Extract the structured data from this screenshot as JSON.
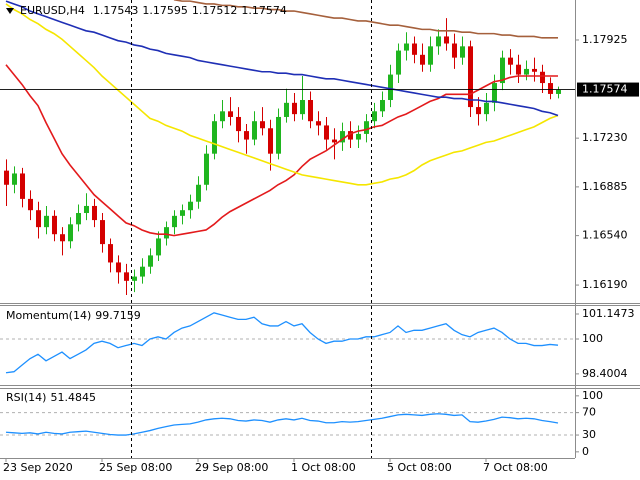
{
  "chart_data": [
    {
      "type": "candlestick",
      "title": "EURUSD,H4",
      "categories": [
        "23 Sep 2020",
        null,
        null,
        null,
        null,
        null,
        null,
        null,
        null,
        null,
        null,
        null,
        "25 Sep 08:00",
        null,
        null,
        null,
        null,
        null,
        null,
        null,
        null,
        null,
        null,
        null,
        "29 Sep 08:00",
        null,
        null,
        null,
        null,
        null,
        null,
        null,
        null,
        null,
        null,
        null,
        "1 Oct 08:00",
        null,
        null,
        null,
        null,
        null,
        null,
        null,
        null,
        null,
        null,
        null,
        "5 Oct 08:00",
        null,
        null,
        null,
        null,
        null,
        null,
        null,
        null,
        null,
        null,
        null,
        "7 Oct 08:00",
        null,
        null,
        null,
        null,
        null,
        null,
        null,
        null,
        null
      ],
      "candles": [
        [
          1.17,
          1.1708,
          1.1675,
          1.169
        ],
        [
          1.169,
          1.1703,
          1.1684,
          1.1698
        ],
        [
          1.1698,
          1.1702,
          1.1674,
          1.168
        ],
        [
          1.168,
          1.1686,
          1.1665,
          1.1672
        ],
        [
          1.1672,
          1.1678,
          1.1652,
          1.166
        ],
        [
          1.166,
          1.1675,
          1.1655,
          1.1668
        ],
        [
          1.1668,
          1.1672,
          1.165,
          1.1655
        ],
        [
          1.1655,
          1.166,
          1.164,
          1.165
        ],
        [
          1.165,
          1.1667,
          1.1645,
          1.1662
        ],
        [
          1.1662,
          1.1676,
          1.1657,
          1.167
        ],
        [
          1.167,
          1.1684,
          1.1665,
          1.1675
        ],
        [
          1.1675,
          1.168,
          1.166,
          1.1665
        ],
        [
          1.1665,
          1.167,
          1.1642,
          1.1648
        ],
        [
          1.1648,
          1.1652,
          1.1628,
          1.1635
        ],
        [
          1.1635,
          1.164,
          1.162,
          1.1628
        ],
        [
          1.1628,
          1.1634,
          1.1612,
          1.1622
        ],
        [
          1.1622,
          1.163,
          1.1614,
          1.1625
        ],
        [
          1.1625,
          1.1638,
          1.162,
          1.1632
        ],
        [
          1.1632,
          1.1645,
          1.1627,
          1.164
        ],
        [
          1.164,
          1.1657,
          1.1636,
          1.1652
        ],
        [
          1.1652,
          1.1664,
          1.1647,
          1.166
        ],
        [
          1.166,
          1.1672,
          1.1655,
          1.1668
        ],
        [
          1.1668,
          1.1676,
          1.1662,
          1.1672
        ],
        [
          1.1672,
          1.1683,
          1.1666,
          1.1678
        ],
        [
          1.1678,
          1.1696,
          1.1673,
          1.169
        ],
        [
          1.169,
          1.1718,
          1.1686,
          1.1712
        ],
        [
          1.1712,
          1.174,
          1.1708,
          1.1735
        ],
        [
          1.1735,
          1.175,
          1.173,
          1.1742
        ],
        [
          1.1742,
          1.1752,
          1.1732,
          1.1738
        ],
        [
          1.1738,
          1.1745,
          1.172,
          1.1728
        ],
        [
          1.1728,
          1.1733,
          1.1712,
          1.1722
        ],
        [
          1.1722,
          1.1742,
          1.1718,
          1.1735
        ],
        [
          1.1735,
          1.1745,
          1.1725,
          1.173
        ],
        [
          1.173,
          1.1736,
          1.17,
          1.1712
        ],
        [
          1.1712,
          1.1744,
          1.1708,
          1.1738
        ],
        [
          1.1738,
          1.1758,
          1.1734,
          1.1748
        ],
        [
          1.1748,
          1.1755,
          1.1735,
          1.174
        ],
        [
          1.174,
          1.1767,
          1.1736,
          1.175
        ],
        [
          1.175,
          1.1756,
          1.173,
          1.1735
        ],
        [
          1.1735,
          1.1742,
          1.1725,
          1.1732
        ],
        [
          1.1732,
          1.1738,
          1.1715,
          1.1722
        ],
        [
          1.1722,
          1.173,
          1.1708,
          1.172
        ],
        [
          1.172,
          1.1734,
          1.1714,
          1.1728
        ],
        [
          1.1728,
          1.1735,
          1.1716,
          1.1722
        ],
        [
          1.1722,
          1.1732,
          1.1716,
          1.1726
        ],
        [
          1.1726,
          1.174,
          1.172,
          1.1735
        ],
        [
          1.1735,
          1.1748,
          1.173,
          1.1742
        ],
        [
          1.1742,
          1.1756,
          1.1738,
          1.175
        ],
        [
          1.175,
          1.1775,
          1.1745,
          1.1768
        ],
        [
          1.1768,
          1.179,
          1.1762,
          1.1785
        ],
        [
          1.1785,
          1.1798,
          1.1778,
          1.179
        ],
        [
          1.179,
          1.1795,
          1.1776,
          1.1782
        ],
        [
          1.1782,
          1.179,
          1.177,
          1.1775
        ],
        [
          1.1775,
          1.1795,
          1.177,
          1.1788
        ],
        [
          1.1788,
          1.18,
          1.1782,
          1.1795
        ],
        [
          1.1795,
          1.1808,
          1.1785,
          1.179
        ],
        [
          1.179,
          1.1797,
          1.1772,
          1.178
        ],
        [
          1.178,
          1.1795,
          1.1775,
          1.1788
        ],
        [
          1.1788,
          1.1792,
          1.1738,
          1.1745
        ],
        [
          1.1745,
          1.1752,
          1.1732,
          1.174
        ],
        [
          1.174,
          1.1755,
          1.1735,
          1.1748
        ],
        [
          1.1748,
          1.1768,
          1.1742,
          1.1762
        ],
        [
          1.1762,
          1.1785,
          1.1757,
          1.178
        ],
        [
          1.178,
          1.1786,
          1.1768,
          1.1775
        ],
        [
          1.1775,
          1.1782,
          1.1762,
          1.1768
        ],
        [
          1.1768,
          1.1778,
          1.1764,
          1.1772
        ],
        [
          1.1772,
          1.178,
          1.1763,
          1.177
        ],
        [
          1.177,
          1.1775,
          1.1755,
          1.1762
        ],
        [
          1.1762,
          1.1766,
          1.17505,
          1.17543
        ],
        [
          1.17543,
          1.17595,
          1.17512,
          1.17574
        ]
      ],
      "up_color": "#1fb51f",
      "down_color": "#d40000",
      "series": [
        {
          "color": "#e31a1c",
          "values": [
            1.1775,
            1.1768,
            1.1761,
            1.1753,
            1.1746,
            1.1734,
            1.1723,
            1.1712,
            1.1704,
            1.1697,
            1.169,
            1.1683,
            1.1678,
            1.1673,
            1.1668,
            1.1663,
            1.1661,
            1.1658,
            1.1656,
            1.1655,
            1.1655,
            1.1654,
            1.1655,
            1.1656,
            1.1657,
            1.1658,
            1.1662,
            1.1667,
            1.1671,
            1.1674,
            1.1677,
            1.168,
            1.1683,
            1.1686,
            1.169,
            1.1693,
            1.1697,
            1.1703,
            1.1708,
            1.1711,
            1.1714,
            1.1718,
            1.1722,
            1.1726,
            1.1728,
            1.1729,
            1.1731,
            1.1732,
            1.1735,
            1.1738,
            1.174,
            1.1743,
            1.1746,
            1.1749,
            1.1751,
            1.1754,
            1.1754,
            1.1754,
            1.1754,
            1.1757,
            1.176,
            1.1763,
            1.1764,
            1.1766,
            1.1767,
            1.1767,
            1.1767,
            1.1767,
            1.1767,
            1.1767
          ]
        },
        {
          "color": "#f5e600",
          "values": [
            1.1818,
            1.1814,
            1.1811,
            1.1807,
            1.1804,
            1.18,
            1.1797,
            1.1793,
            1.1788,
            1.1783,
            1.1778,
            1.1773,
            1.1767,
            1.1762,
            1.1757,
            1.1752,
            1.1747,
            1.1742,
            1.1737,
            1.1735,
            1.1732,
            1.173,
            1.1728,
            1.1725,
            1.1723,
            1.1721,
            1.1719,
            1.1717,
            1.1715,
            1.1713,
            1.1711,
            1.1709,
            1.1707,
            1.1705,
            1.1703,
            1.1701,
            1.1699,
            1.1697,
            1.1696,
            1.1695,
            1.1694,
            1.1693,
            1.1692,
            1.1691,
            1.169,
            1.169,
            1.1691,
            1.1692,
            1.1694,
            1.1695,
            1.1697,
            1.17,
            1.1704,
            1.1707,
            1.1709,
            1.1711,
            1.1713,
            1.1714,
            1.1716,
            1.1718,
            1.172,
            1.1721,
            1.1723,
            1.1725,
            1.1727,
            1.1729,
            1.1731,
            1.1734,
            1.1737,
            1.1739
          ]
        },
        {
          "color": "#1f2fb5",
          "values": [
            1.182,
            1.1818,
            1.1816,
            1.1813,
            1.1811,
            1.1809,
            1.1807,
            1.1805,
            1.1803,
            1.1801,
            1.1799,
            1.1798,
            1.1796,
            1.1794,
            1.1792,
            1.1791,
            1.1789,
            1.1788,
            1.1786,
            1.1785,
            1.1783,
            1.1782,
            1.1781,
            1.178,
            1.1778,
            1.1777,
            1.1776,
            1.1775,
            1.1774,
            1.1773,
            1.1772,
            1.1771,
            1.177,
            1.177,
            1.1769,
            1.1769,
            1.1768,
            1.1768,
            1.1767,
            1.1766,
            1.1765,
            1.1765,
            1.1764,
            1.1763,
            1.1762,
            1.1761,
            1.176,
            1.1759,
            1.1758,
            1.1757,
            1.1756,
            1.1755,
            1.1754,
            1.1753,
            1.1752,
            1.1752,
            1.1751,
            1.1751,
            1.175,
            1.175,
            1.1749,
            1.1749,
            1.1748,
            1.1747,
            1.1746,
            1.1745,
            1.1744,
            1.1742,
            1.1741,
            1.1739
          ]
        },
        {
          "color": "#a5603c",
          "values": [
            null,
            null,
            null,
            null,
            null,
            null,
            null,
            null,
            null,
            null,
            null,
            null,
            null,
            null,
            null,
            null,
            null,
            null,
            null,
            null,
            null,
            1.1821,
            1.182,
            1.182,
            1.1819,
            1.1818,
            1.1818,
            1.1817,
            1.1817,
            1.1816,
            1.1816,
            1.1815,
            1.1815,
            1.1814,
            1.1814,
            1.1813,
            1.1813,
            1.1812,
            1.1811,
            1.181,
            1.1809,
            1.1808,
            1.1808,
            1.1807,
            1.1806,
            1.1806,
            1.1805,
            1.1804,
            1.1803,
            1.1803,
            1.1802,
            1.1801,
            1.18,
            1.18,
            1.1799,
            1.1799,
            1.1799,
            1.1798,
            1.1798,
            1.1797,
            1.1797,
            1.1797,
            1.1796,
            1.1796,
            1.1795,
            1.1795,
            1.1795,
            1.1794,
            1.1794,
            1.1794
          ]
        }
      ],
      "ylim": [
        1.16063,
        1.18208
      ],
      "yticks": [
        1.17925,
        {
          "value": 1.1723,
          "label": "1.17230"
        },
        1.16885,
        {
          "value": 1.1654,
          "label": "1.16540"
        },
        {
          "value": 1.1619,
          "label": "1.16190"
        }
      ]
    },
    {
      "type": "line",
      "title": "Momentum(14)",
      "color": "#1e90ff",
      "values": [
        98.45,
        98.5,
        98.8,
        99.1,
        99.3,
        99.0,
        99.2,
        99.4,
        99.1,
        99.3,
        99.5,
        99.8,
        99.9,
        99.8,
        99.6,
        99.7,
        99.8,
        99.7,
        100.0,
        100.1,
        100.0,
        100.3,
        100.5,
        100.6,
        100.8,
        101.0,
        101.2,
        101.1,
        101.0,
        100.9,
        100.9,
        101.0,
        100.7,
        100.6,
        100.6,
        100.8,
        100.6,
        100.7,
        100.3,
        100.0,
        99.8,
        99.9,
        99.9,
        100.0,
        100.0,
        100.1,
        100.1,
        100.2,
        100.3,
        100.6,
        100.3,
        100.4,
        100.4,
        100.5,
        100.6,
        100.7,
        100.4,
        100.2,
        100.1,
        100.3,
        100.4,
        100.5,
        100.3,
        100.0,
        99.8,
        99.8,
        99.7,
        99.7,
        99.75,
        99.7159
      ],
      "ylim": [
        97.89,
        101.56
      ],
      "yticks": [
        101.1473,
        100,
        98.4004
      ],
      "levels": [
        100
      ]
    },
    {
      "type": "line",
      "title": "RSI(14)",
      "color": "#1e90ff",
      "values": [
        35,
        34,
        33,
        34,
        32,
        35,
        33,
        32,
        35,
        36,
        37,
        35,
        33,
        31,
        30,
        30,
        32,
        35,
        38,
        42,
        45,
        48,
        49,
        50,
        53,
        57,
        59,
        60,
        59,
        56,
        55,
        57,
        56,
        53,
        57,
        59,
        57,
        60,
        56,
        55,
        52,
        52,
        54,
        53,
        54,
        56,
        58,
        60,
        63,
        66,
        67,
        66,
        65,
        67,
        68,
        67,
        65,
        66,
        54,
        53,
        55,
        58,
        62,
        61,
        59,
        60,
        59,
        56,
        54,
        51.4845
      ],
      "ylim": [
        -11,
        114
      ],
      "yticks": [
        100,
        70,
        30,
        0
      ],
      "levels": [
        70,
        30
      ]
    }
  ]
}
